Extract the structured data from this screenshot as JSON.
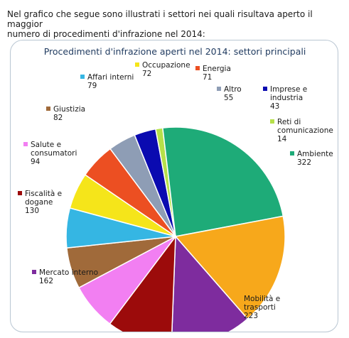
{
  "intro": {
    "line1": "Nel grafico che segue sono illustrati i settori nei quali risultava aperto il maggior",
    "line2": "numero di procedimenti d'infrazione nel 2014:"
  },
  "chart_data": {
    "type": "pie",
    "title": "Procedimenti d'infrazione aperti nel 2014: settori principali",
    "slices": [
      {
        "label": [
          "Altro"
        ],
        "value": 55,
        "color": "#8e9db5"
      },
      {
        "label": [
          "Imprese e",
          "industria"
        ],
        "value": 43,
        "color": "#0a0ab0"
      },
      {
        "label": [
          "Reti di",
          "comunicazione"
        ],
        "value": 14,
        "color": "#b6e04a"
      },
      {
        "label": [
          "Ambiente"
        ],
        "value": 322,
        "color": "#1eab78"
      },
      {
        "label": [
          "Mobilità e",
          "trasporti"
        ],
        "value": 223,
        "color": "#f7a81b"
      },
      {
        "label": [
          "Mercato interno"
        ],
        "value": 162,
        "color": "#7e2c9e"
      },
      {
        "label": [
          "Fiscalità e",
          "dogane"
        ],
        "value": 130,
        "color": "#9c0b0b"
      },
      {
        "label": [
          "Salute e",
          "consumatori"
        ],
        "value": 94,
        "color": "#f27ff2"
      },
      {
        "label": [
          "Giustizia"
        ],
        "value": 82,
        "color": "#a06a3a"
      },
      {
        "label": [
          "Affari interni"
        ],
        "value": 79,
        "color": "#35b6e3"
      },
      {
        "label": [
          "Occupazione"
        ],
        "value": 72,
        "color": "#f5e51a"
      },
      {
        "label": [
          "Energia"
        ],
        "value": 71,
        "color": "#ec4f22"
      }
    ]
  }
}
